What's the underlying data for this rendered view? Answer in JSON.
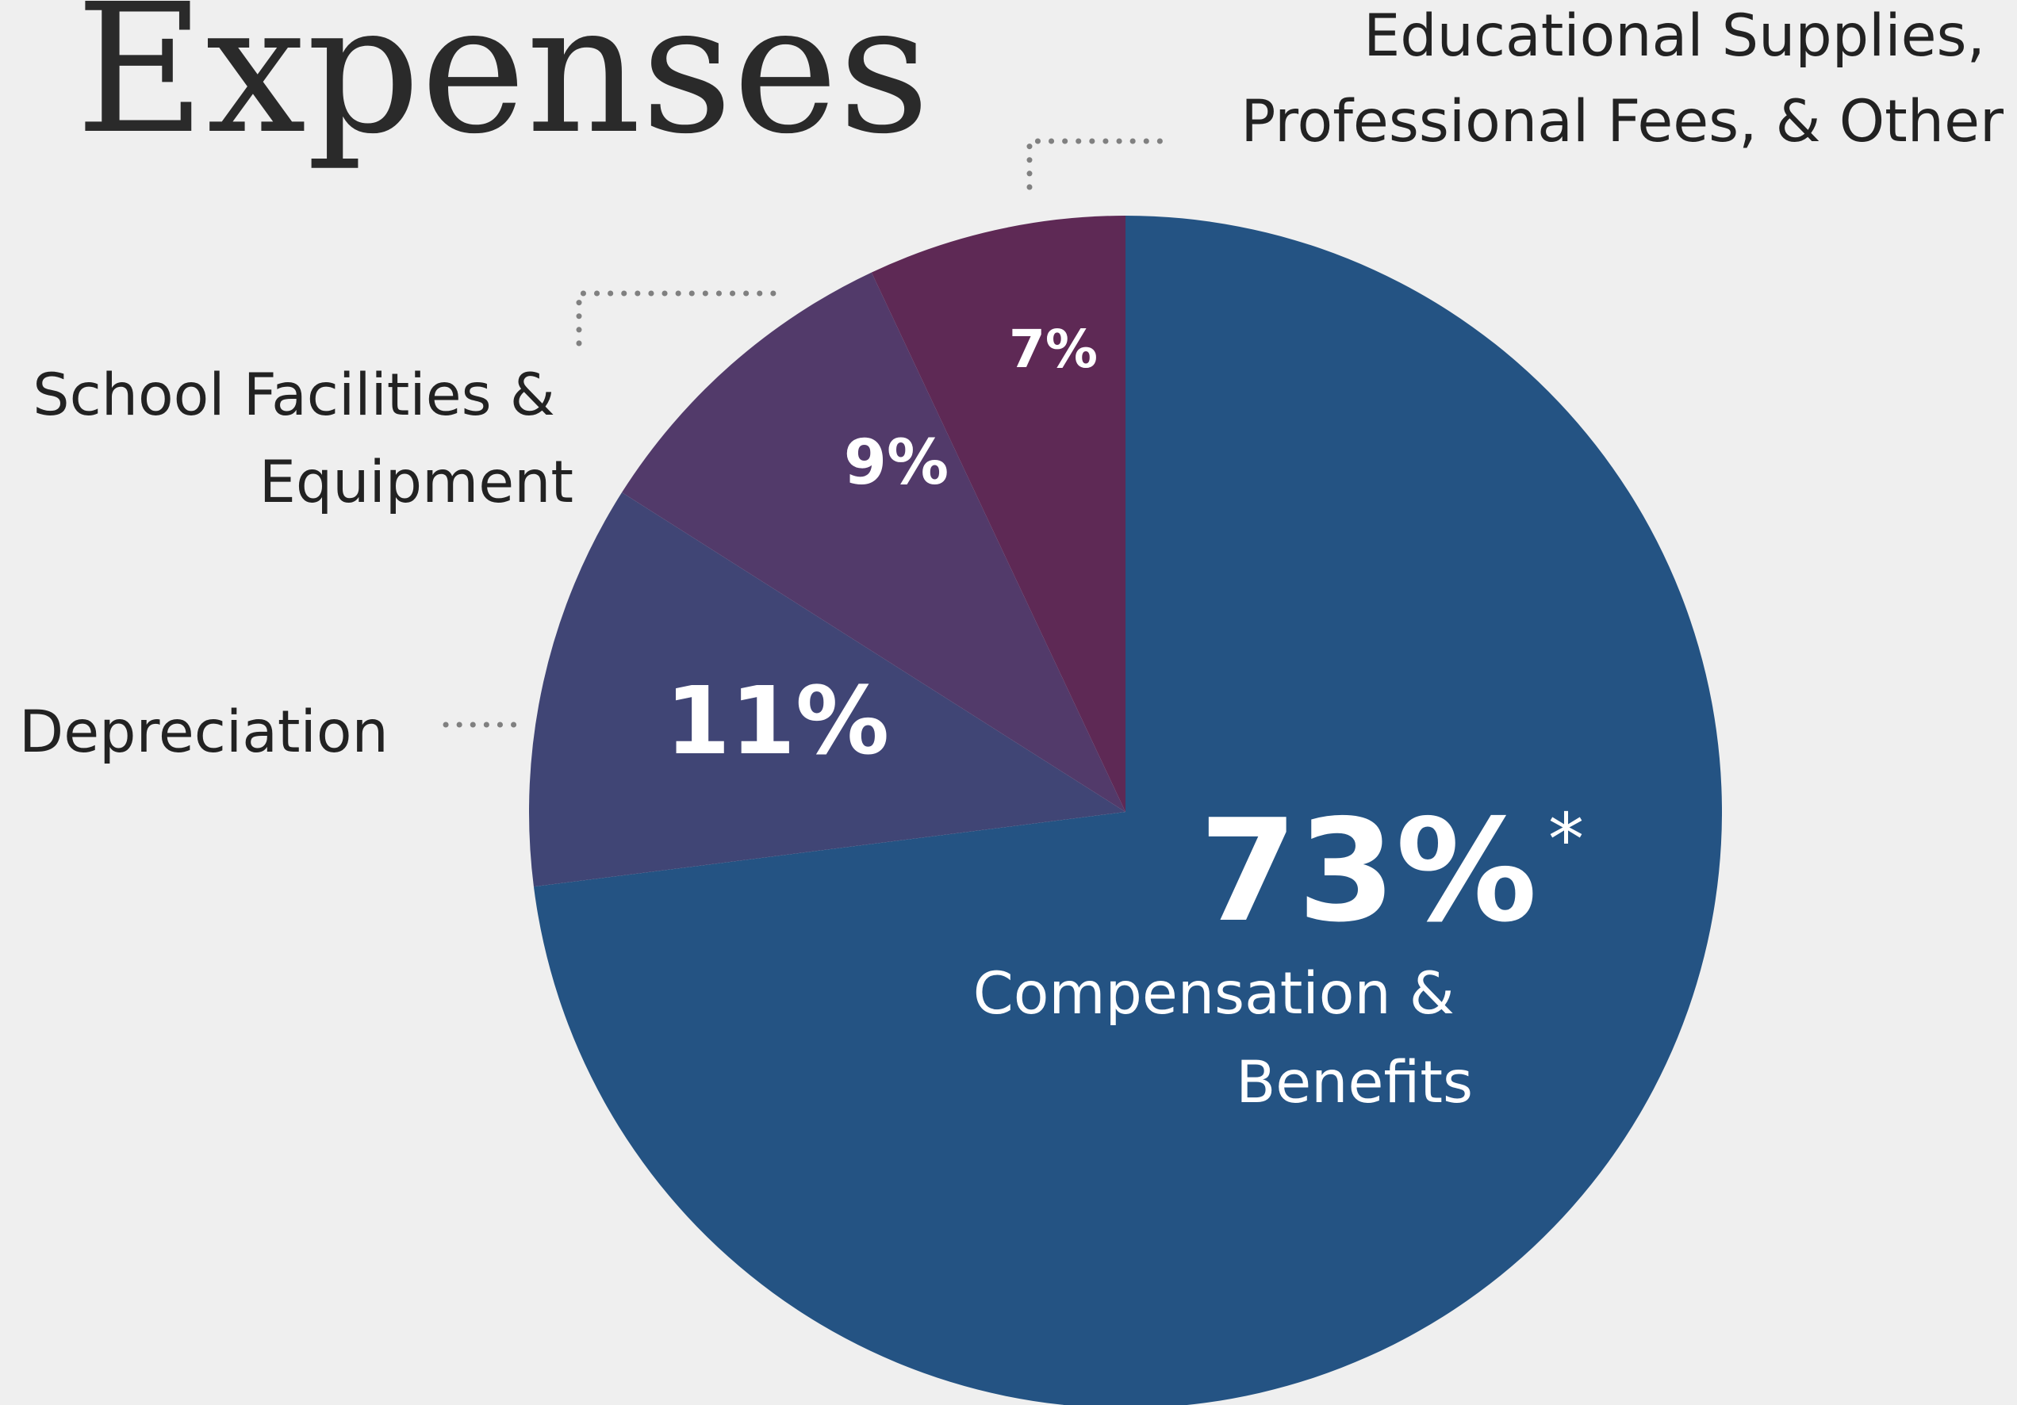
{
  "chart_data": {
    "type": "pie",
    "title": "Expenses",
    "slices": [
      {
        "label": "Compensation & Benefits",
        "label_lines": [
          "Compensation &",
          "Benefits"
        ],
        "value": 73,
        "display": "73%",
        "footnote_mark": "*",
        "color": "#245383"
      },
      {
        "label": "Depreciation",
        "label_lines": [
          "Depreciation"
        ],
        "value": 11,
        "display": "11%",
        "footnote_mark": "",
        "color": "#404575"
      },
      {
        "label": "School Facilities & Equipment",
        "label_lines": [
          "School Facilities &",
          "Equipment"
        ],
        "value": 9,
        "display": "9%",
        "footnote_mark": "",
        "color": "#523a6a"
      },
      {
        "label": "Educational Supplies, Professional Fees, & Other",
        "label_lines": [
          "Educational Supplies,",
          "Professional Fees, & Other"
        ],
        "value": 7,
        "display": "7%",
        "footnote_mark": "",
        "color": "#5e2955"
      }
    ],
    "start_angle_deg": 0,
    "direction": "clockwise",
    "colors": {
      "background": "#efefef",
      "title": "#2a2a2a",
      "label_text": "#222222",
      "leader_line": "#808080"
    }
  }
}
